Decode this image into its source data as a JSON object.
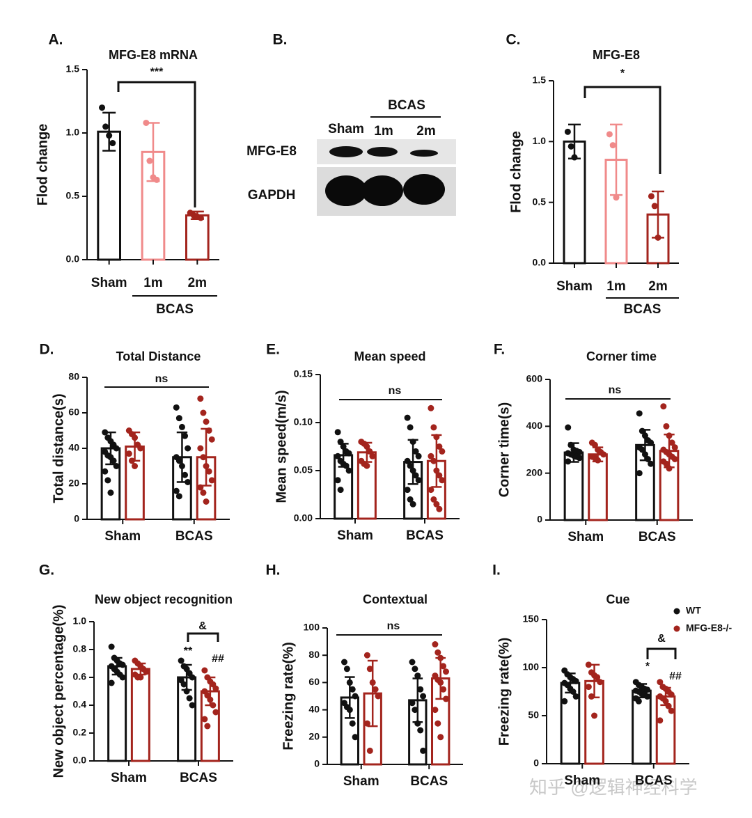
{
  "chart_data": [
    {
      "type": "bar",
      "label": "A.",
      "title": "MFG-E8 mRNA",
      "ylabel": "Flod change",
      "categories": [
        "Sham",
        "1m",
        "2m"
      ],
      "group_label": "BCAS",
      "colors": [
        "#111111",
        "#f08a8a",
        "#a3241d"
      ],
      "values": [
        1.01,
        0.85,
        0.35
      ],
      "errors": [
        0.15,
        0.23,
        0.03
      ],
      "points": [
        [
          1.2,
          1.05,
          0.98,
          0.92
        ],
        [
          1.08,
          0.78,
          0.65,
          0.63
        ],
        [
          0.37,
          0.35,
          0.34,
          0.33
        ]
      ],
      "ylim": [
        0,
        1.5
      ],
      "yticks": [
        {
          "value": 0,
          "label": "0.0"
        },
        0.5,
        {
          "value": 1,
          "label": "1.0"
        },
        1.5
      ],
      "annotations": [
        {
          "text": "***"
        }
      ]
    },
    {
      "type": "blot",
      "label": "B.",
      "group_label": "BCAS",
      "lanes": [
        "Sham",
        "1m",
        "2m"
      ],
      "bands": [
        "MFG-E8",
        "GAPDH"
      ]
    },
    {
      "type": "bar",
      "label": "C.",
      "title": "MFG-E8",
      "ylabel": "Flod change",
      "categories": [
        "Sham",
        "1m",
        "2m"
      ],
      "group_label": "BCAS",
      "colors": [
        "#111111",
        "#f08a8a",
        "#a3241d"
      ],
      "values": [
        1.0,
        0.85,
        0.4
      ],
      "errors": [
        0.14,
        0.29,
        0.19
      ],
      "points": [
        [
          1.08,
          0.96,
          0.87
        ],
        [
          1.06,
          0.97,
          0.54
        ],
        [
          0.55,
          0.47,
          0.21
        ]
      ],
      "ylim": [
        0,
        1.5
      ],
      "yticks": [
        {
          "value": 0,
          "label": "0.0"
        },
        0.5,
        {
          "value": 1,
          "label": "1.0"
        },
        1.5
      ],
      "annotations": [
        {
          "text": "*"
        }
      ]
    },
    {
      "type": "grouped",
      "label": "D.",
      "title": "Total Distance",
      "ylabel": "Total distance(s)",
      "categories": [
        "Sham",
        "BCAS"
      ],
      "series": [
        {
          "color": "#111111",
          "values": [
            40,
            35
          ],
          "errors": [
            9,
            14
          ],
          "points": [
            [
              49,
              46,
              44,
              42,
              40,
              38,
              36,
              35,
              33,
              30,
              27,
              22,
              15
            ],
            [
              63,
              57,
              52,
              47,
              40,
              35,
              33,
              30,
              25,
              21,
              16,
              13
            ]
          ]
        },
        {
          "color": "#a3241d",
          "values": [
            41,
            35
          ],
          "errors": [
            8,
            16
          ],
          "points": [
            [
              50,
              48,
              46,
              42,
              40,
              37,
              33,
              30
            ],
            [
              68,
              60,
              55,
              50,
              45,
              40,
              35,
              30,
              27,
              22,
              18,
              15,
              10
            ]
          ]
        }
      ],
      "ylim": [
        0,
        80
      ],
      "yticks": [
        0,
        20,
        40,
        60,
        80
      ],
      "annotations": [
        {
          "text": "ns"
        }
      ]
    },
    {
      "type": "grouped",
      "label": "E.",
      "title": "Mean speed",
      "ylabel": "Mean speed(m/s)",
      "categories": [
        "Sham",
        "BCAS"
      ],
      "series": [
        {
          "color": "#111111",
          "values": [
            0.066,
            0.059
          ],
          "errors": [
            0.012,
            0.023
          ],
          "points": [
            [
              0.09,
              0.08,
              0.075,
              0.07,
              0.068,
              0.065,
              0.06,
              0.057,
              0.055,
              0.05,
              0.04,
              0.03
            ],
            [
              0.105,
              0.095,
              0.08,
              0.07,
              0.065,
              0.06,
              0.055,
              0.05,
              0.045,
              0.04,
              0.03,
              0.02,
              0.015
            ]
          ]
        },
        {
          "color": "#a3241d",
          "values": [
            0.069,
            0.06
          ],
          "errors": [
            0.01,
            0.027
          ],
          "points": [
            [
              0.08,
              0.078,
              0.075,
              0.07,
              0.065,
              0.06,
              0.057,
              0.055
            ],
            [
              0.115,
              0.095,
              0.085,
              0.075,
              0.07,
              0.065,
              0.06,
              0.05,
              0.045,
              0.04,
              0.03,
              0.02,
              0.015,
              0.01
            ]
          ]
        }
      ],
      "ylim": [
        0,
        0.15
      ],
      "yticks": [
        {
          "value": 0,
          "label": "0.00"
        },
        {
          "value": 0.05,
          "label": "0.05"
        },
        {
          "value": 0.1,
          "label": "0.10"
        },
        {
          "value": 0.15,
          "label": "0.15"
        }
      ],
      "annotations": [
        {
          "text": "ns"
        }
      ]
    },
    {
      "type": "grouped",
      "label": "F.",
      "title": "Corner time",
      "ylabel": "Corner time(s)",
      "categories": [
        "Sham",
        "BCAS"
      ],
      "series": [
        {
          "color": "#111111",
          "values": [
            288,
            320
          ],
          "errors": [
            40,
            65
          ],
          "points": [
            [
              395,
              320,
              300,
              295,
              290,
              285,
              280,
              275,
              270,
              265,
              250
            ],
            [
              455,
              380,
              360,
              340,
              330,
              310,
              300,
              280,
              260,
              240,
              200
            ]
          ]
        },
        {
          "color": "#a3241d",
          "values": [
            280,
            295
          ],
          "errors": [
            30,
            70
          ],
          "points": [
            [
              330,
              320,
              300,
              290,
              280,
              270,
              265,
              255
            ],
            [
              485,
              400,
              360,
              330,
              310,
              300,
              290,
              280,
              270,
              260,
              250,
              240,
              220
            ]
          ]
        }
      ],
      "ylim": [
        0,
        600
      ],
      "yticks": [
        0,
        200,
        400,
        600
      ],
      "annotations": [
        {
          "text": "ns"
        }
      ]
    },
    {
      "type": "grouped",
      "label": "G.",
      "title": "New object recognition",
      "ylabel": "New object percentage(%)",
      "categories": [
        "Sham",
        "BCAS"
      ],
      "series": [
        {
          "color": "#111111",
          "values": [
            0.68,
            0.6
          ],
          "errors": [
            0.06,
            0.09
          ],
          "points": [
            [
              0.82,
              0.74,
              0.72,
              0.7,
              0.69,
              0.68,
              0.66,
              0.64,
              0.62,
              0.6,
              0.56
            ],
            [
              0.72,
              0.68,
              0.66,
              0.63,
              0.6,
              0.58,
              0.55,
              0.5,
              0.45,
              0.4
            ]
          ]
        },
        {
          "color": "#a3241d",
          "values": [
            0.66,
            0.5
          ],
          "errors": [
            0.04,
            0.1
          ],
          "points": [
            [
              0.72,
              0.7,
              0.68,
              0.66,
              0.64,
              0.62,
              0.6,
              0.6
            ],
            [
              0.65,
              0.6,
              0.57,
              0.55,
              0.52,
              0.5,
              0.47,
              0.44,
              0.4,
              0.35,
              0.3,
              0.25
            ]
          ]
        }
      ],
      "ylim": [
        0,
        1
      ],
      "yticks": [
        {
          "value": 0,
          "label": "0.0"
        },
        0.2,
        0.4,
        0.6,
        0.8,
        {
          "value": 1,
          "label": "1.0"
        }
      ],
      "annotations": [
        {
          "text": "&"
        },
        {
          "text": "**"
        },
        {
          "text": "##"
        }
      ]
    },
    {
      "type": "grouped",
      "label": "H.",
      "title": "Contextual",
      "ylabel": "Freezing rate(%)",
      "categories": [
        "Sham",
        "BCAS"
      ],
      "series": [
        {
          "color": "#111111",
          "values": [
            49,
            47
          ],
          "errors": [
            15,
            16
          ],
          "points": [
            [
              75,
              70,
              60,
              55,
              50,
              45,
              42,
              40,
              30,
              20
            ],
            [
              75,
              70,
              65,
              55,
              50,
              45,
              40,
              30,
              25,
              10
            ]
          ]
        },
        {
          "color": "#a3241d",
          "values": [
            52,
            63
          ],
          "errors": [
            24,
            15
          ],
          "points": [
            [
              80,
              70,
              60,
              55,
              50,
              30,
              10
            ],
            [
              88,
              82,
              78,
              72,
              68,
              65,
              62,
              60,
              55,
              48,
              40,
              30,
              20
            ]
          ]
        }
      ],
      "ylim": [
        0,
        100
      ],
      "yticks": [
        0,
        20,
        40,
        60,
        80,
        100
      ],
      "annotations": [
        {
          "text": "ns"
        }
      ]
    },
    {
      "type": "grouped",
      "label": "I.",
      "title": "Cue",
      "ylabel": "Freezing rate(%)",
      "categories": [
        "Sham",
        "BCAS"
      ],
      "legend": true,
      "series": [
        {
          "name": "WT",
          "color": "#111111",
          "values": [
            84,
            76
          ],
          "errors": [
            10,
            7
          ],
          "points": [
            [
              97,
              93,
              90,
              88,
              86,
              84,
              82,
              78,
              75,
              70,
              65
            ],
            [
              85,
              82,
              80,
              78,
              77,
              76,
              75,
              73,
              72,
              70,
              68,
              65
            ]
          ]
        },
        {
          "name": "MFG-E8-/-",
          "color": "#a3241d",
          "values": [
            86,
            70
          ],
          "errors": [
            17,
            9
          ],
          "points": [
            [
              103,
              95,
              92,
              90,
              85,
              80,
              70,
              50
            ],
            [
              85,
              80,
              78,
              75,
              72,
              70,
              68,
              65,
              60,
              55,
              45
            ]
          ]
        }
      ],
      "ylim": [
        0,
        150
      ],
      "yticks": [
        0,
        50,
        100,
        150
      ],
      "annotations": [
        {
          "text": "&"
        },
        {
          "text": "*"
        },
        {
          "text": "##"
        }
      ]
    }
  ],
  "watermark": "知乎 @逻辑神经科学"
}
